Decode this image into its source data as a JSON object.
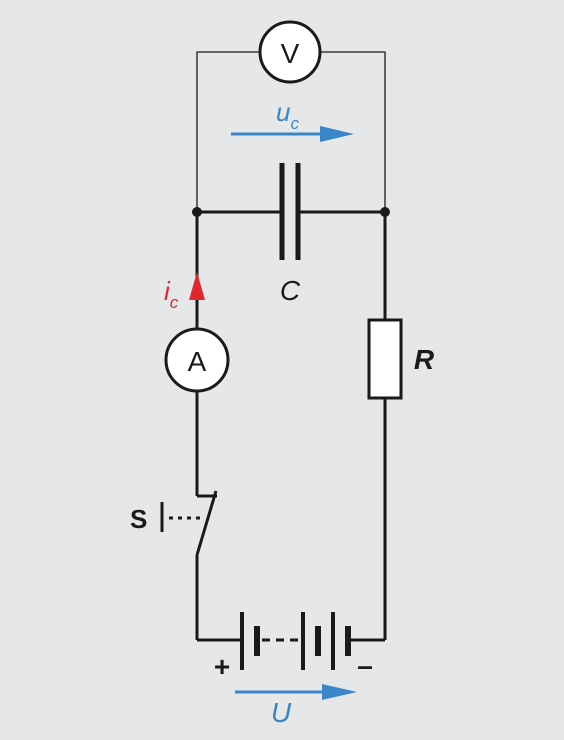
{
  "labels": {
    "voltmeter": "V",
    "ammeter": "A",
    "capacitor": "C",
    "resistor": "R",
    "switch": "S",
    "uc_main": "u",
    "uc_sub": "c",
    "ic_main": "i",
    "ic_sub": "c",
    "supply": "U",
    "plus": "+",
    "minus": "–"
  },
  "colors": {
    "background": "#e6e7e9",
    "wire": "#1a1a1a",
    "voltage_arrow": "#3a86c8",
    "current_arrow": "#e3262d"
  }
}
